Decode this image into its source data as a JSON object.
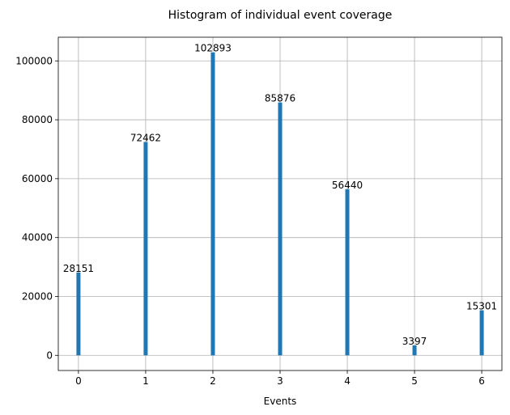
{
  "chart_data": {
    "type": "bar",
    "title": "Histogram of individual event coverage",
    "xlabel": "Events",
    "ylabel": "",
    "categories": [
      0,
      1,
      2,
      3,
      4,
      5,
      6
    ],
    "values": [
      28151,
      72462,
      102893,
      85876,
      56440,
      3397,
      15301
    ],
    "data_labels": [
      "28151",
      "72462",
      "102893",
      "85876",
      "56440",
      "3397",
      "15301"
    ],
    "x_ticks": [
      "0",
      "1",
      "2",
      "3",
      "4",
      "5",
      "6"
    ],
    "y_ticks": [
      0,
      20000,
      40000,
      60000,
      80000,
      100000
    ],
    "y_tick_labels": [
      "0",
      "20000",
      "40000",
      "60000",
      "80000",
      "100000"
    ],
    "xlim": [
      -0.3,
      6.3
    ],
    "ylim": [
      -5145,
      108040
    ],
    "grid": true,
    "bar_color": "#1f77b4"
  }
}
